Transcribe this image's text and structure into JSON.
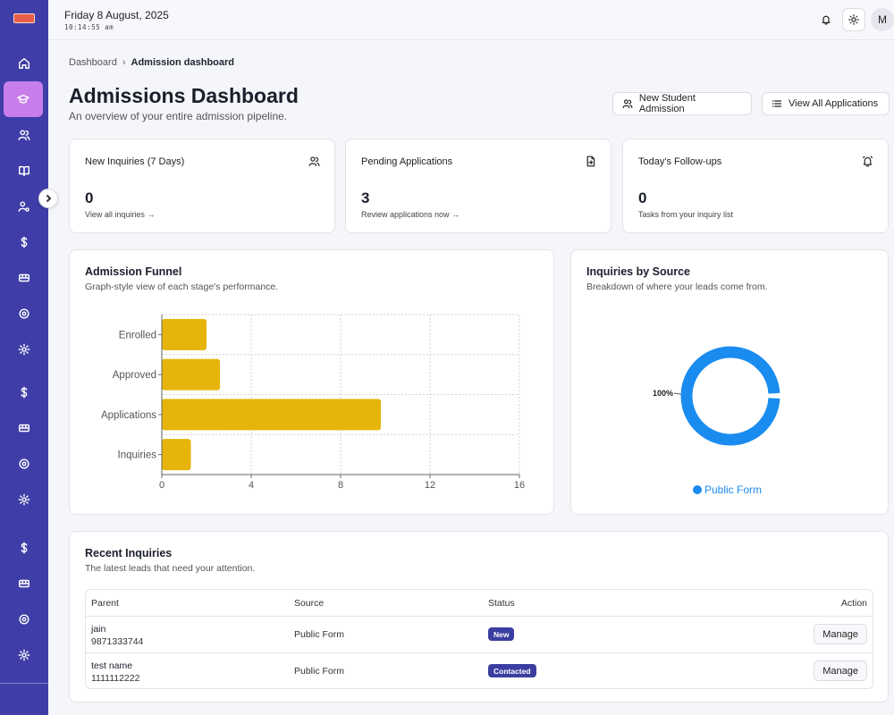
{
  "app": {
    "logo_text": "FLOWERS"
  },
  "header": {
    "date": "Friday 8 August, 2025",
    "time": "10:14:55 am",
    "avatar_initial": "M"
  },
  "breadcrumb": {
    "root": "Dashboard",
    "separator": "›",
    "current": "Admission dashboard"
  },
  "page": {
    "title": "Admissions Dashboard",
    "subtitle": "An overview of your entire admission pipeline.",
    "new_admission_label": "New Student Admission",
    "view_all_label": "View All Applications"
  },
  "stats": [
    {
      "title": "New Inquiries (7 Days)",
      "value": "0",
      "link": "View all inquiries →",
      "icon": "users-icon"
    },
    {
      "title": "Pending Applications",
      "value": "3",
      "link": "Review applications now →",
      "icon": "file-arrow-icon"
    },
    {
      "title": "Today's Follow-ups",
      "value": "0",
      "link": "Tasks from your inquiry list",
      "icon": "alarm-icon"
    }
  ],
  "funnel": {
    "title": "Admission Funnel",
    "subtitle": "Graph-style view of each stage's performance."
  },
  "sources": {
    "title": "Inquiries by Source",
    "subtitle": "Breakdown of where your leads come from."
  },
  "chart_data": [
    {
      "type": "bar",
      "orientation": "horizontal",
      "categories": [
        "Enrolled",
        "Approved",
        "Applications",
        "Inquiries"
      ],
      "values": [
        2,
        2.6,
        9.8,
        1.3
      ],
      "xlim": [
        0,
        16
      ],
      "x_ticks": [
        0,
        4,
        8,
        12,
        16
      ],
      "grid": true,
      "bar_color": "#e6b40a"
    },
    {
      "type": "pie",
      "variant": "donut",
      "slices": [
        {
          "name": "Public Form",
          "value": 100,
          "label": "100%"
        }
      ],
      "legend": "bottom",
      "color": "#1a8cf0"
    }
  ],
  "recent": {
    "title": "Recent Inquiries",
    "subtitle": "The latest leads that need your attention.",
    "columns": {
      "parent": "Parent",
      "source": "Source",
      "status": "Status",
      "action": "Action"
    },
    "rows": [
      {
        "name": "jain",
        "phone": "9871333744",
        "source": "Public Form",
        "status": "New",
        "action": "Manage"
      },
      {
        "name": "test name",
        "phone": "1111112222",
        "source": "Public Form",
        "status": "Contacted",
        "action": "Manage"
      }
    ]
  },
  "sidebar": {
    "icons": [
      "home-icon",
      "graduation-cap-icon",
      "users-icon",
      "book-icon",
      "user-cog-icon",
      "dollar-icon",
      "bus-icon",
      "settings-icon",
      "gear-icon",
      "dollar-icon",
      "bus-icon",
      "settings-icon",
      "gear-icon",
      "dollar-icon",
      "bus-icon",
      "settings-icon",
      "gear-icon"
    ],
    "active_index": 1
  }
}
